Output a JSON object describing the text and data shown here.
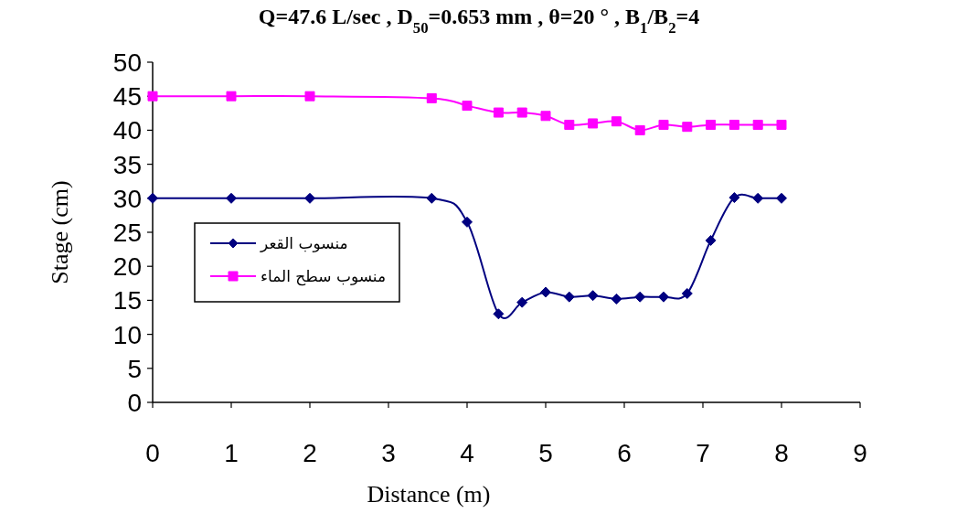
{
  "chart_data": {
    "type": "line",
    "title": "Q=47.6 L/sec , D$_{50}$=0.653 mm , θ=20 ° , B$_{1}$/B$_{2}$=4",
    "xlabel": "Distance (m)",
    "ylabel": "Stage (cm)",
    "xlim": [
      0,
      9
    ],
    "ylim": [
      0,
      50
    ],
    "xticks": [
      0,
      1,
      2,
      3,
      4,
      5,
      6,
      7,
      8,
      9
    ],
    "yticks": [
      0,
      5,
      10,
      15,
      20,
      25,
      30,
      35,
      40,
      45,
      50
    ],
    "grid": false,
    "legend": "left",
    "series": [
      {
        "name": "منسوب القعر",
        "color": "#000080",
        "marker": "diamond",
        "x": [
          0,
          1,
          2,
          3.55,
          4.0,
          4.4,
          4.7,
          5.0,
          5.3,
          5.6,
          5.9,
          6.2,
          6.5,
          6.8,
          7.1,
          7.4,
          7.7,
          8.0
        ],
        "values": [
          30,
          30,
          30,
          30,
          26.5,
          13,
          14.7,
          16.2,
          15.5,
          15.7,
          15.2,
          15.5,
          15.5,
          16,
          23.8,
          30.1,
          30,
          30
        ]
      },
      {
        "name": "منسوب سطح الماء",
        "color": "#ff00ff",
        "marker": "square",
        "x": [
          0,
          1,
          2,
          3.55,
          4.0,
          4.4,
          4.7,
          5.0,
          5.3,
          5.6,
          5.9,
          6.2,
          6.5,
          6.8,
          7.1,
          7.4,
          7.7,
          8.0
        ],
        "values": [
          45,
          45,
          45,
          44.7,
          43.6,
          42.6,
          42.6,
          42.1,
          40.8,
          41.0,
          41.3,
          40.0,
          40.8,
          40.5,
          40.8,
          40.8,
          40.8,
          40.8
        ]
      }
    ]
  }
}
